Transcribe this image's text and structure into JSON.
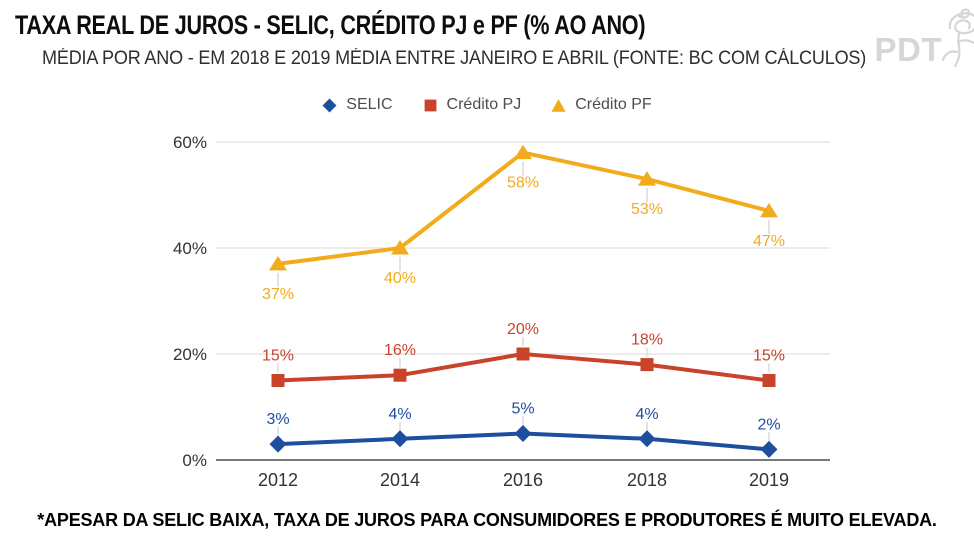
{
  "header": {
    "title": "TAXA REAL DE JUROS - SELIC, CRÉDITO PJ e PF (% AO ANO)",
    "subtitle": "MÉDIA POR ANO - EM 2018 E 2019 MÉDIA ENTRE JANEIRO E ABRIL (FONTE: BC COM CÁLCULOS)",
    "logo_text": "PDT"
  },
  "legend": {
    "items": [
      {
        "label": "SELIC",
        "marker": "diamond",
        "color": "#1d4f9e"
      },
      {
        "label": "Crédito PJ",
        "marker": "square",
        "color": "#c8432a"
      },
      {
        "label": "Crédito PF",
        "marker": "triangle",
        "color": "#f2ab1d"
      }
    ]
  },
  "chart_data": {
    "type": "line",
    "title": "TAXA REAL DE JUROS - SELIC, CRÉDITO PJ e PF (% AO ANO)",
    "categories": [
      "2012",
      "2014",
      "2016",
      "2018",
      "2019"
    ],
    "series": [
      {
        "name": "SELIC",
        "color": "#1d4f9e",
        "marker": "diamond",
        "label_position": "above",
        "values": [
          3,
          4,
          5,
          4,
          2
        ],
        "labels": [
          "3%",
          "4%",
          "5%",
          "4%",
          "2%"
        ]
      },
      {
        "name": "Crédito PJ",
        "color": "#c8432a",
        "marker": "square",
        "label_position": "above",
        "values": [
          15,
          16,
          20,
          18,
          15
        ],
        "labels": [
          "15%",
          "16%",
          "20%",
          "18%",
          "15%"
        ]
      },
      {
        "name": "Crédito PF",
        "color": "#f2ab1d",
        "marker": "triangle",
        "label_position": "below",
        "values": [
          37,
          40,
          58,
          53,
          47
        ],
        "labels": [
          "37%",
          "40%",
          "58%",
          "53%",
          "47%"
        ]
      }
    ],
    "xlabel": "",
    "ylabel": "",
    "ylim": [
      0,
      60
    ],
    "y_ticks": [
      {
        "value": 0,
        "label": "0%"
      },
      {
        "value": 20,
        "label": "20%"
      },
      {
        "value": 40,
        "label": "40%"
      },
      {
        "value": 60,
        "label": "60%"
      }
    ],
    "grid": true,
    "legend_position": "top"
  },
  "footer": {
    "note": "*APESAR DA SELIC BAIXA, TAXA DE JUROS PARA CONSUMIDORES E PRODUTORES É MUITO ELEVADA."
  },
  "colors": {
    "axis": "#7a7a7a",
    "gridline": "#dadada",
    "tick_text": "#333333",
    "legend_text": "#4d4d4d",
    "leader": "#e3e3e3",
    "logo": "#d6d6d6"
  }
}
